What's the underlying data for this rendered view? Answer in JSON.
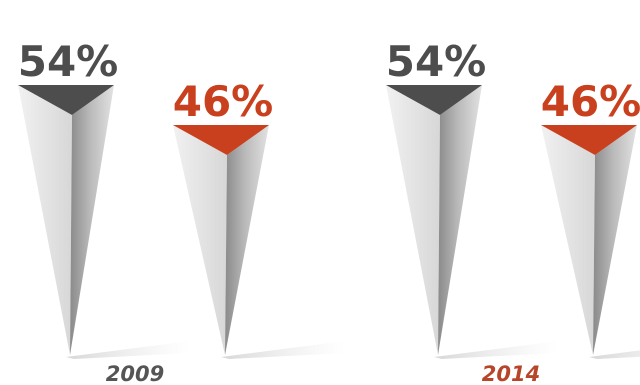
{
  "colors": {
    "gray": "#4d4d4d",
    "orange": "#c9401e",
    "year_2009": "#555555",
    "year_2014": "#b7452a"
  },
  "chart_data": {
    "type": "bar",
    "title": "",
    "xlabel": "",
    "ylabel": "",
    "ylim": [
      0,
      100
    ],
    "unit": "%",
    "groups": [
      {
        "label": "2009",
        "label_color": "year_2009",
        "bars": [
          {
            "value": 54,
            "label": "54%",
            "color": "gray"
          },
          {
            "value": 46,
            "label": "46%",
            "color": "orange"
          }
        ]
      },
      {
        "label": "2014",
        "label_color": "year_2014",
        "bars": [
          {
            "value": 54,
            "label": "54%",
            "color": "gray"
          },
          {
            "value": 46,
            "label": "46%",
            "color": "orange"
          }
        ]
      }
    ]
  }
}
